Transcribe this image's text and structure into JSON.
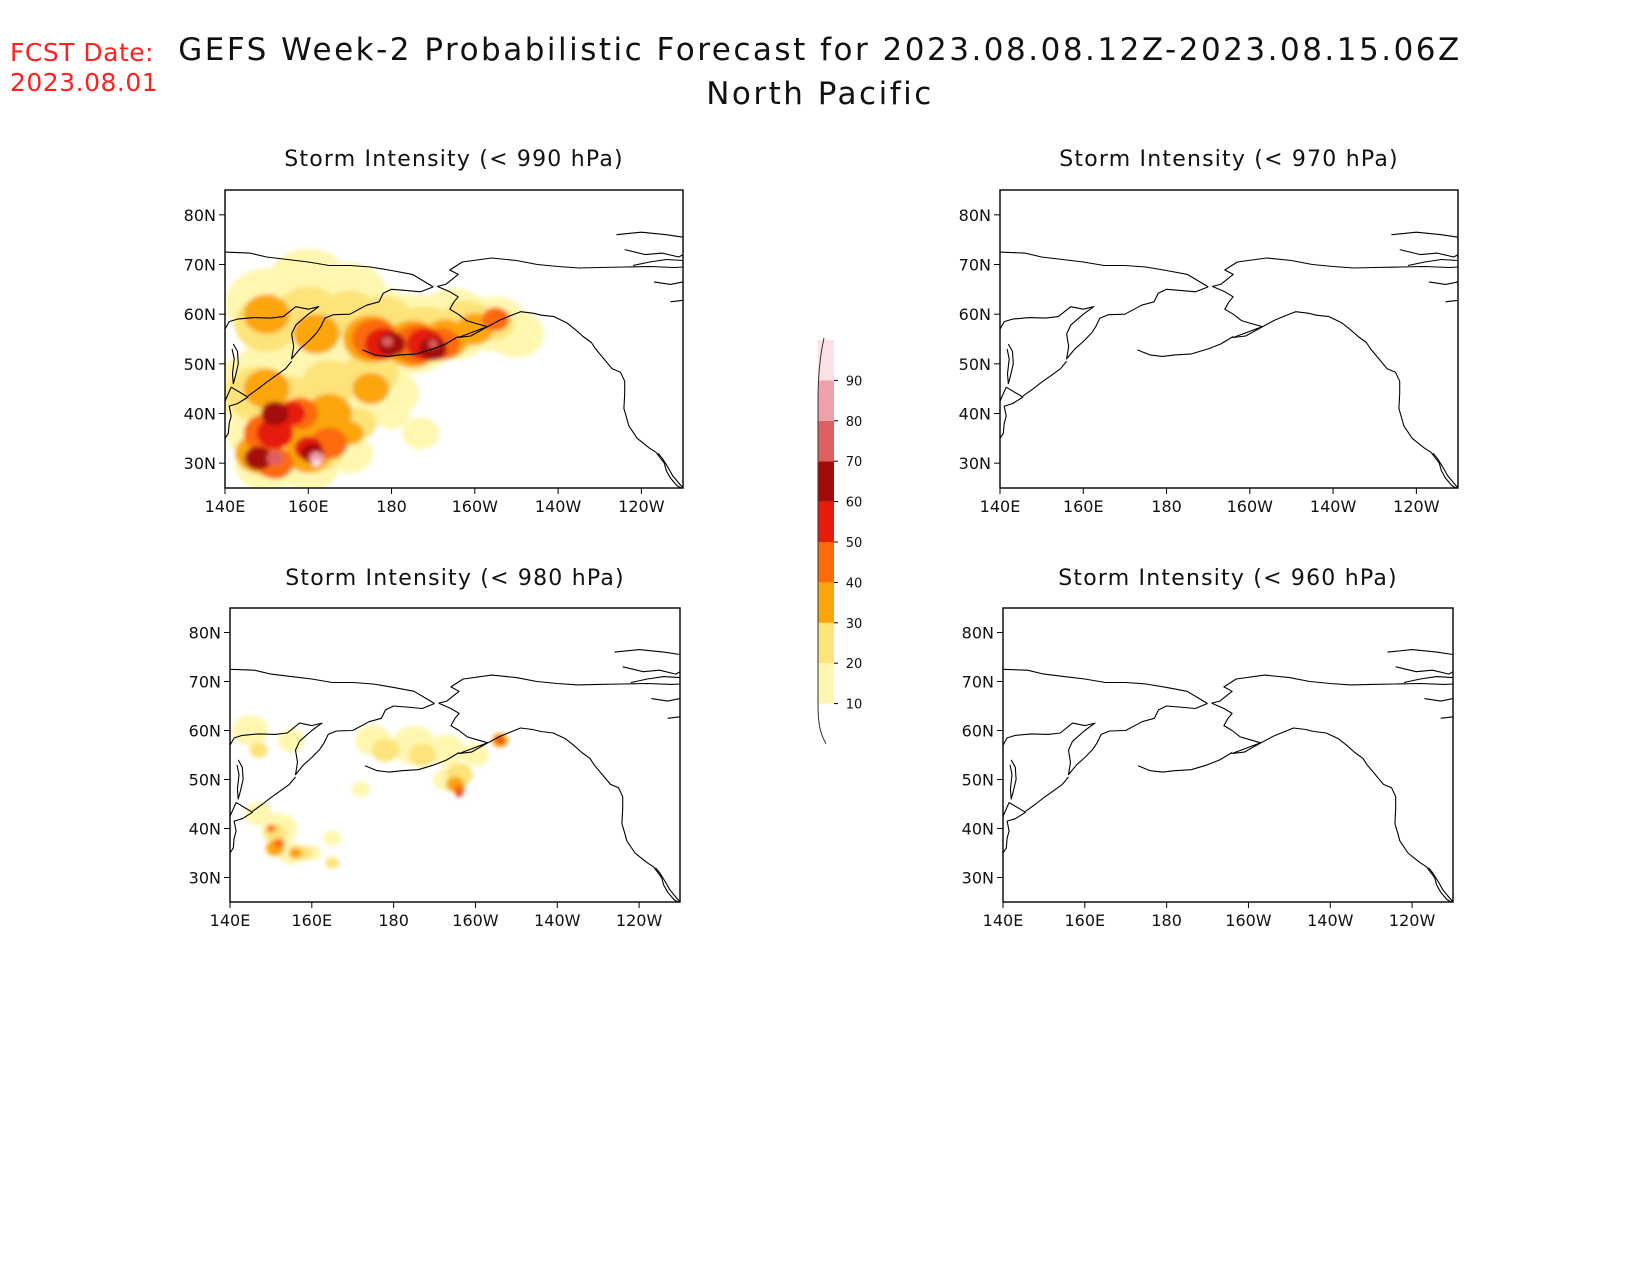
{
  "fcst_date": {
    "label": "FCST Date:",
    "value": "2023.08.01"
  },
  "title": {
    "line1": "GEFS Week-2 Probabilistic Forecast for 2023.08.08.12Z-2023.08.15.06Z",
    "line2": "North Pacific"
  },
  "panels": [
    {
      "id": "p990",
      "title": "Storm Intensity (< 990 hPa)",
      "threshold": "990 hPa",
      "coverage": "widespread",
      "peak_probability": 90
    },
    {
      "id": "p970",
      "title": "Storm Intensity (< 970 hPa)",
      "threshold": "970 hPa",
      "coverage": "none",
      "peak_probability": 0
    },
    {
      "id": "p980",
      "title": "Storm Intensity (< 980 hPa)",
      "threshold": "980 hPa",
      "coverage": "scattered",
      "peak_probability": 50
    },
    {
      "id": "p960",
      "title": "Storm Intensity (< 960 hPa)",
      "threshold": "960 hPa",
      "coverage": "none",
      "peak_probability": 0
    }
  ],
  "axes": {
    "lon_ticks": [
      "140E",
      "160E",
      "180",
      "160W",
      "140W",
      "120W"
    ],
    "lat_ticks": [
      "80N",
      "70N",
      "60N",
      "50N",
      "40N",
      "30N"
    ],
    "lon_range": [
      140,
      250
    ],
    "lat_range": [
      25,
      85
    ]
  },
  "colorbar": {
    "levels": [
      "10",
      "20",
      "30",
      "40",
      "50",
      "60",
      "70",
      "80",
      "90"
    ],
    "colors": [
      "#fff7b0",
      "#fde37a",
      "#fca50a",
      "#fc6a0a",
      "#e51c0a",
      "#a50a0a",
      "#e06060",
      "#f0a0a8",
      "#fde0e4"
    ]
  }
}
